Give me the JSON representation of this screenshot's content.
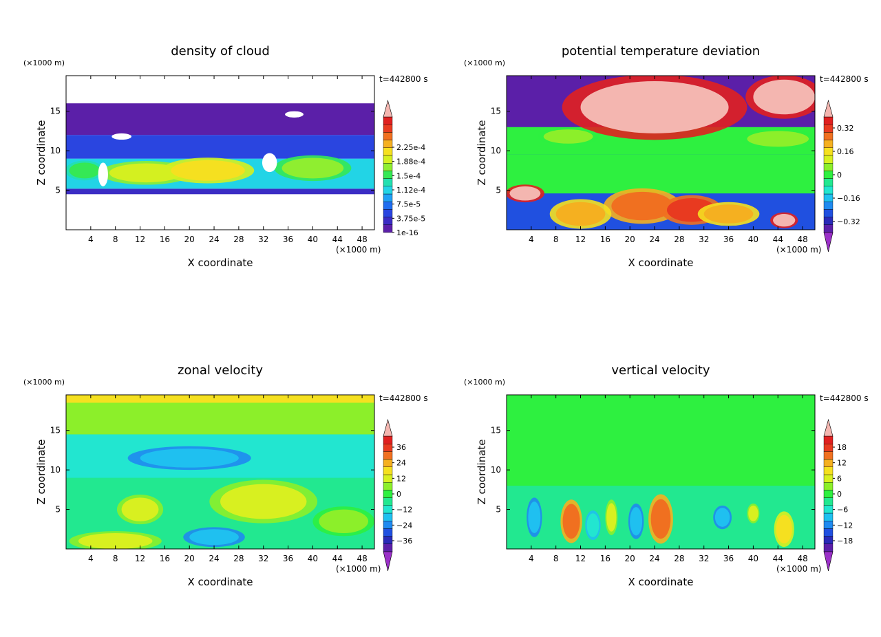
{
  "colors": {
    "cloud": [
      "#5b1fa8",
      "#3b2cc4",
      "#2a45e0",
      "#1f6df0",
      "#1fa0f5",
      "#22d4e6",
      "#22e0b0",
      "#35e855",
      "#8fee30",
      "#d4f020",
      "#f5e020",
      "#f5b020",
      "#f07020",
      "#e83a20",
      "#e02020",
      "#f4b6b0"
    ],
    "diverging": [
      "#9b30c8",
      "#5b1fa8",
      "#2a2ab8",
      "#2050e0",
      "#1f8af0",
      "#1fc0f0",
      "#22e6d0",
      "#22e890",
      "#2ef040",
      "#8cef2a",
      "#d8f020",
      "#f5e020",
      "#f5b020",
      "#f07020",
      "#e83a20",
      "#e02020",
      "#f4b6b0"
    ],
    "cloud_white": "#ffffff"
  },
  "panels": [
    {
      "title": "density of cloud",
      "unit_label": "(×1000 m)",
      "time_label": "t=442800 s",
      "xlabel": "X coordinate",
      "ylabel": "Z coordinate",
      "xunit": "(×1000 m)",
      "colorbar_labels": [
        "2.25e-4",
        "1.88e-4",
        "1.5e-4",
        "1.12e-4",
        "7.5e-5",
        "3.75e-5",
        "1e-16"
      ]
    },
    {
      "title": "potential temperature deviation",
      "unit_label": "(×1000 m)",
      "time_label": "t=442800 s",
      "xlabel": "X coordinate",
      "ylabel": "Z coordinate",
      "xunit": "(×1000 m)",
      "colorbar_labels": [
        "0.32",
        "0.16",
        "0",
        "−0.16",
        "−0.32"
      ]
    },
    {
      "title": "zonal velocity",
      "unit_label": "(×1000 m)",
      "time_label": "t=442800 s",
      "xlabel": "X coordinate",
      "ylabel": "Z coordinate",
      "xunit": "(×1000 m)",
      "colorbar_labels": [
        "36",
        "24",
        "12",
        "0",
        "−12",
        "−24",
        "−36"
      ]
    },
    {
      "title": "vertical velocity",
      "unit_label": "(×1000 m)",
      "time_label": "t=442800 s",
      "xlabel": "X coordinate",
      "ylabel": "Z coordinate",
      "xunit": "(×1000 m)",
      "colorbar_labels": [
        "18",
        "12",
        "6",
        "0",
        "−6",
        "−12",
        "−18"
      ]
    }
  ],
  "chart_data": [
    {
      "type": "heatmap",
      "title": "density of cloud",
      "xlabel": "X coordinate",
      "ylabel": "Z coordinate",
      "x_ticks": [
        4,
        8,
        12,
        16,
        20,
        24,
        28,
        32,
        36,
        40,
        44,
        48
      ],
      "y_ticks": [
        5,
        10,
        15
      ],
      "xlim": [
        0,
        50
      ],
      "ylim": [
        0,
        19.5
      ],
      "colorbar_levels": [
        "1e-16",
        "3.75e-5",
        "7.5e-5",
        "1.12e-4",
        "1.5e-4",
        "1.88e-4",
        "2.25e-4"
      ],
      "bands": [
        {
          "z_from": 4.5,
          "z_to": 5.2,
          "level": 1
        },
        {
          "z_from": 5.2,
          "z_to": 9.0,
          "level": 5
        },
        {
          "z_from": 9.0,
          "z_to": 12.0,
          "level": 2
        },
        {
          "z_from": 12.0,
          "z_to": 16.0,
          "level": 0
        }
      ],
      "blobs": [
        {
          "x": 13,
          "z": 7.2,
          "rx": 6,
          "rz": 1.2,
          "level": 9
        },
        {
          "x": 23,
          "z": 7.5,
          "rx": 6,
          "rz": 1.3,
          "level": 10
        },
        {
          "x": 40,
          "z": 7.8,
          "rx": 5,
          "rz": 1.3,
          "level": 8
        },
        {
          "x": 3,
          "z": 7.5,
          "rx": 2.5,
          "rz": 1.0,
          "level": 7
        }
      ],
      "gaps": [
        {
          "x": 33,
          "z": 8.5,
          "rx": 1.2,
          "rz": 1.2
        },
        {
          "x": 6,
          "z": 7.0,
          "rx": 0.8,
          "rz": 1.5
        },
        {
          "x": 9,
          "z": 11.8,
          "rx": 1.6,
          "rz": 0.4
        },
        {
          "x": 37,
          "z": 14.6,
          "rx": 1.5,
          "rz": 0.4
        }
      ]
    },
    {
      "type": "heatmap",
      "title": "potential temperature deviation",
      "xlabel": "X coordinate",
      "ylabel": "Z coordinate",
      "x_ticks": [
        4,
        8,
        12,
        16,
        20,
        24,
        28,
        32,
        36,
        40,
        44,
        48
      ],
      "y_ticks": [
        5,
        10,
        15
      ],
      "xlim": [
        0,
        50
      ],
      "ylim": [
        0,
        19.5
      ],
      "colorbar_levels": [
        "−0.32",
        "−0.16",
        "0",
        "0.16",
        "0.32"
      ],
      "bands": [
        {
          "z_from": 0,
          "z_to": 4.6,
          "level": 3
        },
        {
          "z_from": 4.6,
          "z_to": 9.5,
          "level": 8
        },
        {
          "z_from": 9.5,
          "z_to": 13.0,
          "level": 8
        },
        {
          "z_from": 13.0,
          "z_to": 19.5,
          "level": 1
        }
      ],
      "blobs": [
        {
          "x": 24,
          "z": 15.5,
          "rx": 12,
          "rz": 3.3,
          "level": 16
        },
        {
          "x": 45,
          "z": 16.8,
          "rx": 5,
          "rz": 2.2,
          "level": 16
        },
        {
          "x": 22,
          "z": 3.0,
          "rx": 5,
          "rz": 1.8,
          "level": 13
        },
        {
          "x": 30,
          "z": 2.5,
          "rx": 4,
          "rz": 1.5,
          "level": 14
        },
        {
          "x": 36,
          "z": 2.0,
          "rx": 4,
          "rz": 1.2,
          "level": 12
        },
        {
          "x": 12,
          "z": 2.0,
          "rx": 4,
          "rz": 1.5,
          "level": 12
        },
        {
          "x": 3,
          "z": 4.6,
          "rx": 2.5,
          "rz": 0.9,
          "level": 16
        },
        {
          "x": 45,
          "z": 1.2,
          "rx": 1.8,
          "rz": 0.8,
          "level": 16
        },
        {
          "x": 44,
          "z": 11.5,
          "rx": 5,
          "rz": 1.0,
          "level": 9
        },
        {
          "x": 10,
          "z": 11.8,
          "rx": 4,
          "rz": 0.9,
          "level": 9
        }
      ]
    },
    {
      "type": "heatmap",
      "title": "zonal velocity",
      "xlabel": "X coordinate",
      "ylabel": "Z coordinate",
      "x_ticks": [
        4,
        8,
        12,
        16,
        20,
        24,
        28,
        32,
        36,
        40,
        44,
        48
      ],
      "y_ticks": [
        5,
        10,
        15
      ],
      "xlim": [
        0,
        50
      ],
      "ylim": [
        0,
        19.5
      ],
      "colorbar_levels": [
        "−36",
        "−24",
        "−12",
        "0",
        "12",
        "24",
        "36"
      ],
      "bands": [
        {
          "z_from": 0,
          "z_to": 9.0,
          "level": 7
        },
        {
          "z_from": 9.0,
          "z_to": 14.5,
          "level": 6
        },
        {
          "z_from": 14.5,
          "z_to": 18.5,
          "level": 9
        },
        {
          "z_from": 18.5,
          "z_to": 19.5,
          "level": 11
        }
      ],
      "blobs": [
        {
          "x": 32,
          "z": 6.0,
          "rx": 7,
          "rz": 2.2,
          "level": 10
        },
        {
          "x": 12,
          "z": 5.0,
          "rx": 3,
          "rz": 1.5,
          "level": 10
        },
        {
          "x": 8,
          "z": 1.0,
          "rx": 6,
          "rz": 1.0,
          "level": 10
        },
        {
          "x": 45,
          "z": 3.5,
          "rx": 4,
          "rz": 1.5,
          "level": 9
        },
        {
          "x": 20,
          "z": 11.5,
          "rx": 8,
          "rz": 1.2,
          "level": 5
        },
        {
          "x": 24,
          "z": 1.5,
          "rx": 4,
          "rz": 1.0,
          "level": 5
        }
      ]
    },
    {
      "type": "heatmap",
      "title": "vertical velocity",
      "xlabel": "X coordinate",
      "ylabel": "Z coordinate",
      "x_ticks": [
        4,
        8,
        12,
        16,
        20,
        24,
        28,
        32,
        36,
        40,
        44,
        48
      ],
      "y_ticks": [
        5,
        10,
        15
      ],
      "xlim": [
        0,
        50
      ],
      "ylim": [
        0,
        19.5
      ],
      "colorbar_levels": [
        "−18",
        "−12",
        "−6",
        "0",
        "6",
        "12",
        "18"
      ],
      "bands": [
        {
          "z_from": 0,
          "z_to": 8.0,
          "level": 7
        },
        {
          "z_from": 8.0,
          "z_to": 19.5,
          "level": 8
        }
      ],
      "blobs": [
        {
          "x": 10.5,
          "z": 3.5,
          "rx": 1.4,
          "rz": 2.2,
          "level": 13
        },
        {
          "x": 25,
          "z": 3.8,
          "rx": 1.6,
          "rz": 2.5,
          "level": 13
        },
        {
          "x": 45,
          "z": 2.5,
          "rx": 1.3,
          "rz": 1.8,
          "level": 11
        },
        {
          "x": 17,
          "z": 4.0,
          "rx": 0.8,
          "rz": 1.8,
          "level": 10
        },
        {
          "x": 4.5,
          "z": 4.0,
          "rx": 1.0,
          "rz": 2.0,
          "level": 5
        },
        {
          "x": 21,
          "z": 3.5,
          "rx": 1.0,
          "rz": 1.8,
          "level": 5
        },
        {
          "x": 35,
          "z": 4.0,
          "rx": 1.2,
          "rz": 1.2,
          "level": 5
        },
        {
          "x": 14,
          "z": 3.0,
          "rx": 1.0,
          "rz": 1.5,
          "level": 6
        },
        {
          "x": 40,
          "z": 4.5,
          "rx": 0.8,
          "rz": 1.0,
          "level": 10
        }
      ]
    }
  ]
}
